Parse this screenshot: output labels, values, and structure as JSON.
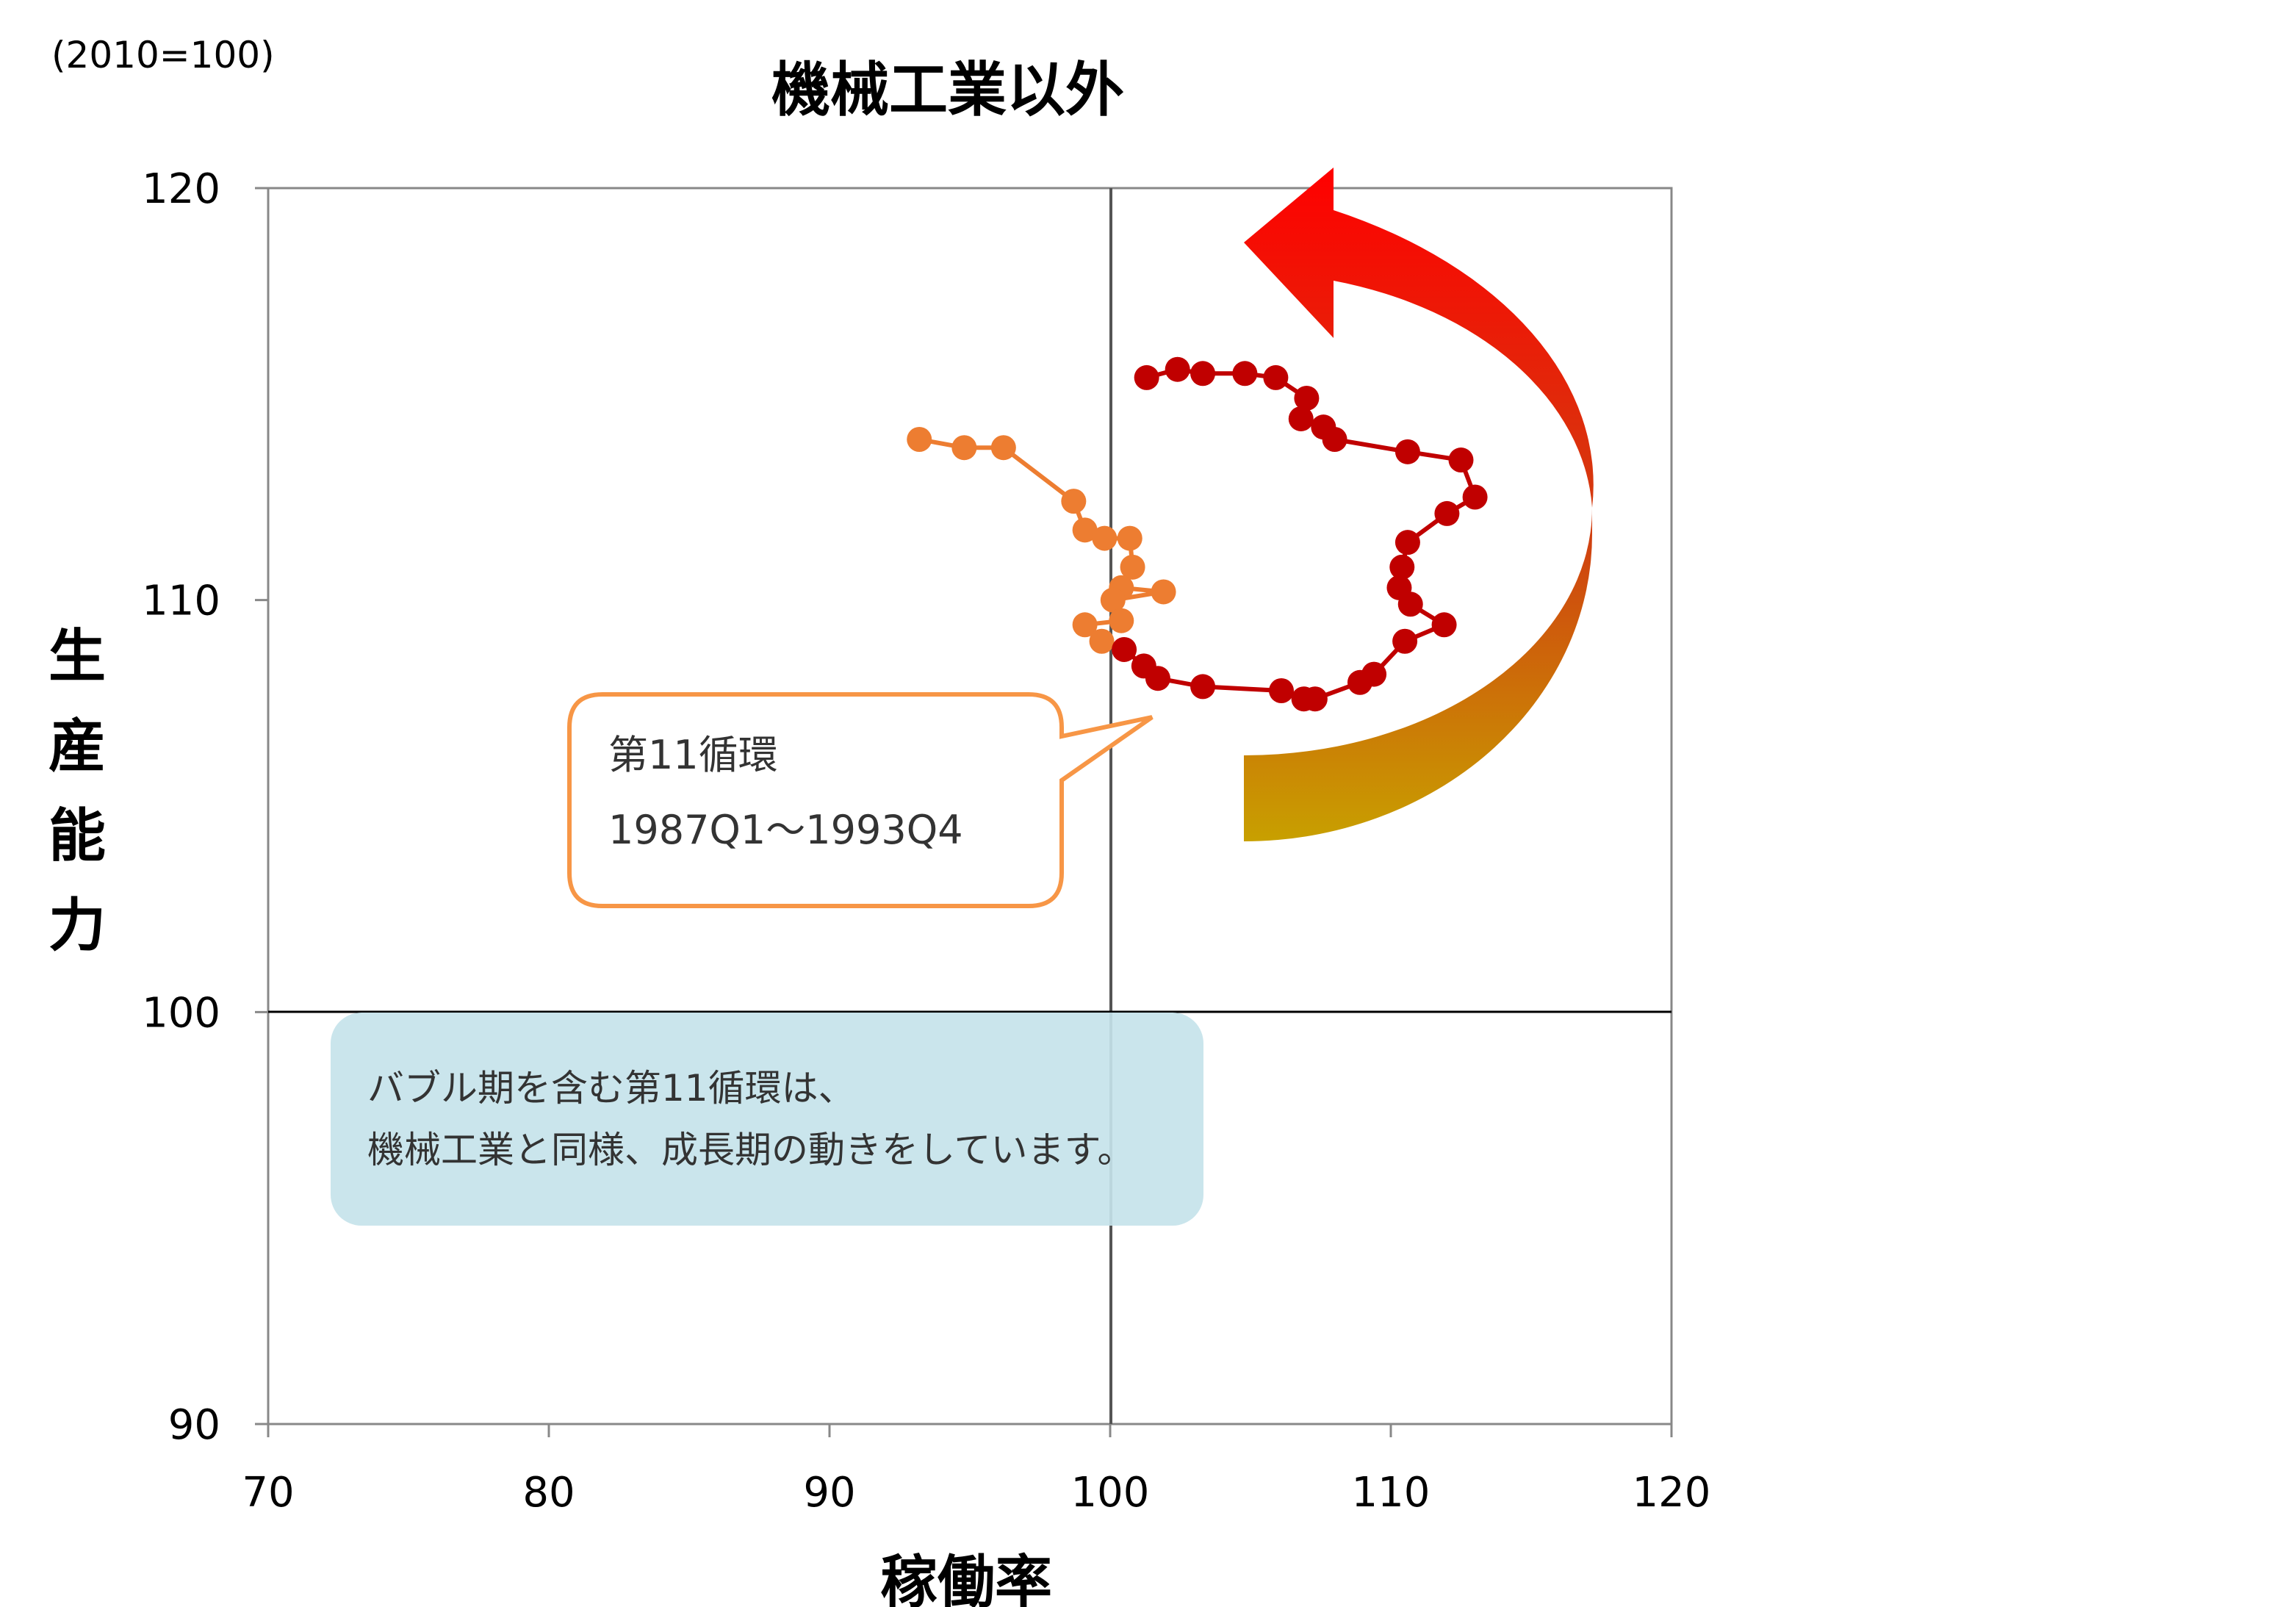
{
  "chart_data": {
    "type": "scatter",
    "title": "機械工業以外",
    "unit_label": "(2010=100)",
    "xlabel": "稼働率",
    "ylabel": "生産能力",
    "xlim": [
      70,
      120
    ],
    "ylim": [
      90,
      120
    ],
    "x_ticks": [
      "70",
      "80",
      "90",
      "100",
      "110",
      "120"
    ],
    "y_ticks": [
      "90",
      "100",
      "110",
      "120"
    ],
    "reference_lines": {
      "x": 100,
      "y": 100
    },
    "grid": false,
    "legend": "none",
    "series": [
      {
        "color": "#ED7D31",
        "points": [
          [
            93.2,
            113.9
          ],
          [
            94.8,
            113.7
          ],
          [
            96.2,
            113.7
          ],
          [
            98.7,
            112.4
          ],
          [
            99.1,
            111.7
          ],
          [
            99.8,
            111.5
          ],
          [
            100.7,
            111.5
          ],
          [
            100.8,
            110.8
          ],
          [
            100.4,
            110.3
          ],
          [
            101.9,
            110.2
          ],
          [
            100.1,
            110.0
          ],
          [
            100.4,
            109.5
          ],
          [
            99.1,
            109.4
          ],
          [
            99.7,
            109.0
          ]
        ]
      },
      {
        "color": "#C00000",
        "points": [
          [
            100.5,
            108.8
          ],
          [
            101.2,
            108.4
          ],
          [
            101.7,
            108.1
          ],
          [
            103.3,
            107.9
          ],
          [
            106.1,
            107.8
          ],
          [
            106.9,
            107.6
          ],
          [
            107.3,
            107.6
          ],
          [
            108.9,
            108.0
          ],
          [
            109.4,
            108.2
          ],
          [
            110.5,
            109.0
          ],
          [
            111.9,
            109.4
          ],
          [
            110.7,
            109.9
          ],
          [
            110.3,
            110.3
          ],
          [
            110.4,
            110.8
          ],
          [
            110.6,
            111.4
          ],
          [
            112.0,
            112.1
          ],
          [
            113.0,
            112.5
          ],
          [
            112.5,
            113.4
          ],
          [
            110.6,
            113.6
          ],
          [
            108.0,
            113.9
          ],
          [
            107.6,
            114.2
          ],
          [
            106.8,
            114.4
          ],
          [
            107.0,
            114.9
          ],
          [
            105.9,
            115.4
          ],
          [
            104.8,
            115.5
          ],
          [
            103.3,
            115.5
          ],
          [
            102.4,
            115.6
          ],
          [
            101.3,
            115.4
          ]
        ]
      }
    ],
    "annotations": {
      "callout": {
        "line1": "第11循環",
        "line2": "1987Q1～1993Q4",
        "border_color": "#F79646"
      },
      "note": {
        "line1": "バブル期を含む第11循環は、",
        "line2": "機械工業と同様、成長期の動きをしています。",
        "background": "#C5E3EA"
      }
    },
    "arrow": {
      "direction": "counterclockwise",
      "color_start": "#C8A000",
      "color_end": "#FF0000"
    }
  }
}
